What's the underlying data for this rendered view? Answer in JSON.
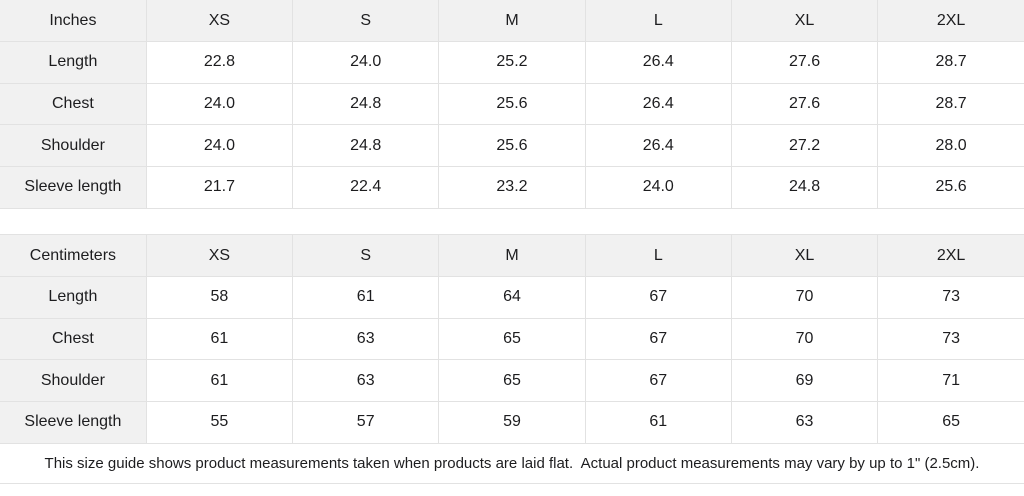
{
  "tables": [
    {
      "unit_label": "Inches",
      "sizes": [
        "XS",
        "S",
        "M",
        "L",
        "XL",
        "2XL"
      ],
      "rows": [
        {
          "label": "Length",
          "values": [
            "22.8",
            "24.0",
            "25.2",
            "26.4",
            "27.6",
            "28.7"
          ]
        },
        {
          "label": "Chest",
          "values": [
            "24.0",
            "24.8",
            "25.6",
            "26.4",
            "27.6",
            "28.7"
          ]
        },
        {
          "label": "Shoulder",
          "values": [
            "24.0",
            "24.8",
            "25.6",
            "26.4",
            "27.2",
            "28.0"
          ]
        },
        {
          "label": "Sleeve length",
          "values": [
            "21.7",
            "22.4",
            "23.2",
            "24.0",
            "24.8",
            "25.6"
          ]
        }
      ]
    },
    {
      "unit_label": "Centimeters",
      "sizes": [
        "XS",
        "S",
        "M",
        "L",
        "XL",
        "2XL"
      ],
      "rows": [
        {
          "label": "Length",
          "values": [
            "58",
            "61",
            "64",
            "67",
            "70",
            "73"
          ]
        },
        {
          "label": "Chest",
          "values": [
            "61",
            "63",
            "65",
            "67",
            "70",
            "73"
          ]
        },
        {
          "label": "Shoulder",
          "values": [
            "61",
            "63",
            "65",
            "67",
            "69",
            "71"
          ]
        },
        {
          "label": "Sleeve length",
          "values": [
            "55",
            "57",
            "59",
            "61",
            "63",
            "65"
          ]
        }
      ]
    }
  ],
  "footer": {
    "note": "This size guide shows product measurements taken when products are laid flat.  Actual product measurements may vary by up to 1\" (2.5cm)."
  },
  "colors": {
    "header_bg": "#f1f1f1",
    "cell_bg": "#ffffff",
    "border": "#e2e2e2",
    "text": "#1d1d1f"
  }
}
